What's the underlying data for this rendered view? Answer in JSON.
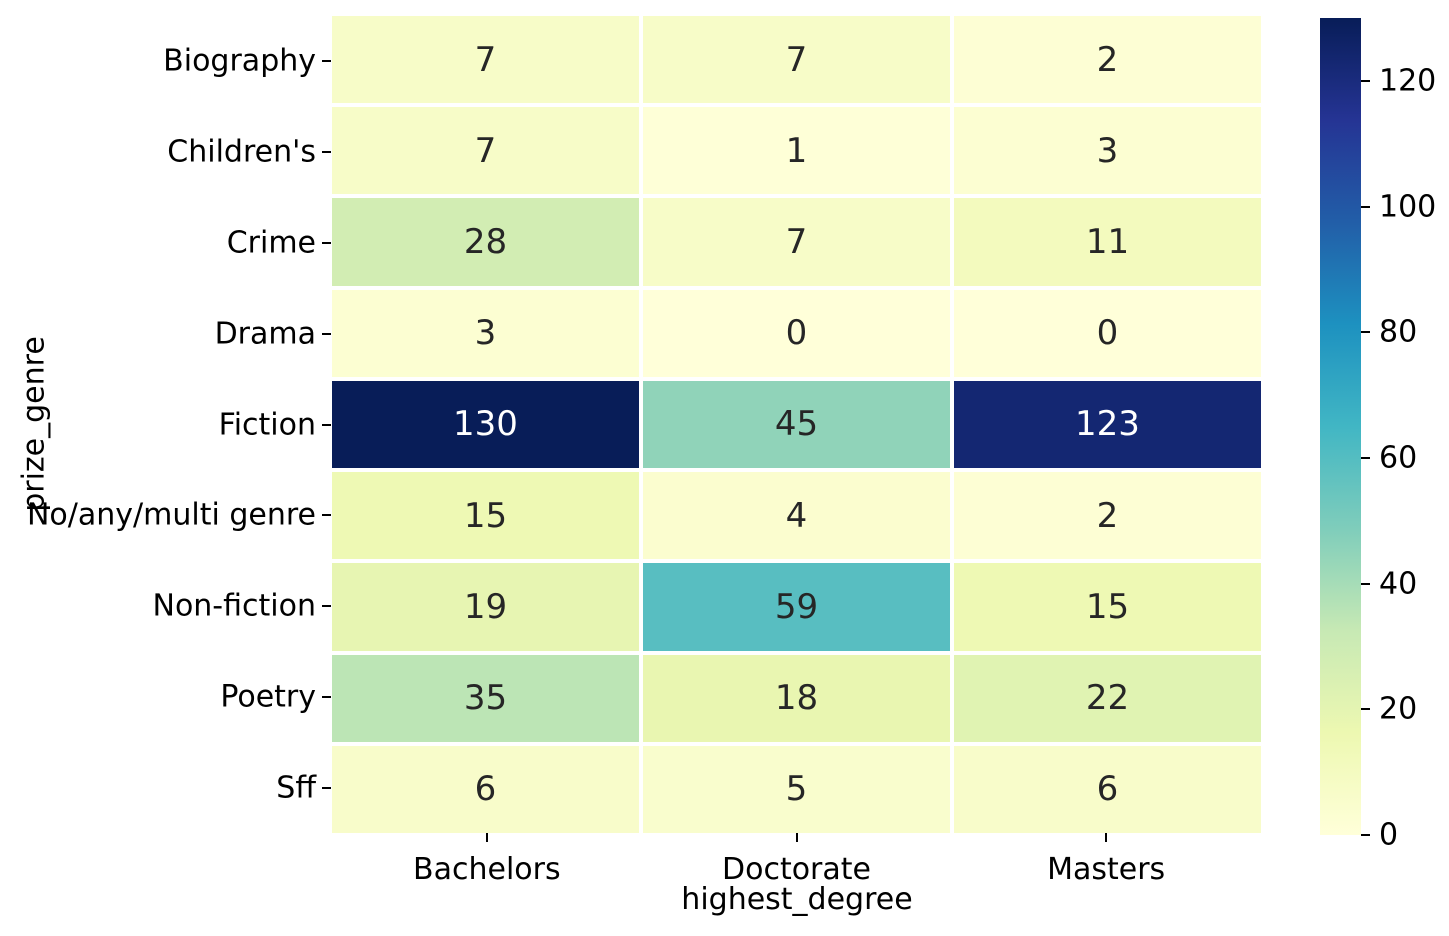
{
  "chart_data": {
    "type": "heatmap",
    "title": "",
    "xlabel": "highest_degree",
    "ylabel": "prize_genre",
    "rows": [
      "Biography",
      "Children's",
      "Crime",
      "Drama",
      "Fiction",
      "No/any/multi genre",
      "Non-fiction",
      "Poetry",
      "Sff"
    ],
    "columns": [
      "Bachelors",
      "Doctorate",
      "Masters"
    ],
    "values": [
      [
        7,
        7,
        2
      ],
      [
        7,
        1,
        3
      ],
      [
        28,
        7,
        11
      ],
      [
        3,
        0,
        0
      ],
      [
        130,
        45,
        123
      ],
      [
        15,
        4,
        2
      ],
      [
        19,
        59,
        15
      ],
      [
        35,
        18,
        22
      ],
      [
        6,
        5,
        6
      ]
    ],
    "vmin": 0,
    "vmax": 130,
    "colormap": "YlGnBu",
    "colormap_stops": [
      {
        "pos": 0.0,
        "color": "#ffffd9"
      },
      {
        "pos": 0.125,
        "color": "#edf8b1"
      },
      {
        "pos": 0.25,
        "color": "#c7e9b4"
      },
      {
        "pos": 0.375,
        "color": "#7fcdbb"
      },
      {
        "pos": 0.5,
        "color": "#41b6c4"
      },
      {
        "pos": 0.625,
        "color": "#1d91c0"
      },
      {
        "pos": 0.75,
        "color": "#225ea8"
      },
      {
        "pos": 0.875,
        "color": "#253494"
      },
      {
        "pos": 1.0,
        "color": "#081d58"
      }
    ],
    "colorbar_ticks": [
      0,
      20,
      40,
      60,
      80,
      100,
      120
    ],
    "colorbar_position": "right",
    "grid": "off",
    "cell_gap_color": "#ffffff",
    "annotation_color_dark": "#262626",
    "annotation_color_light": "#ffffff",
    "tick_color": "#000000"
  }
}
